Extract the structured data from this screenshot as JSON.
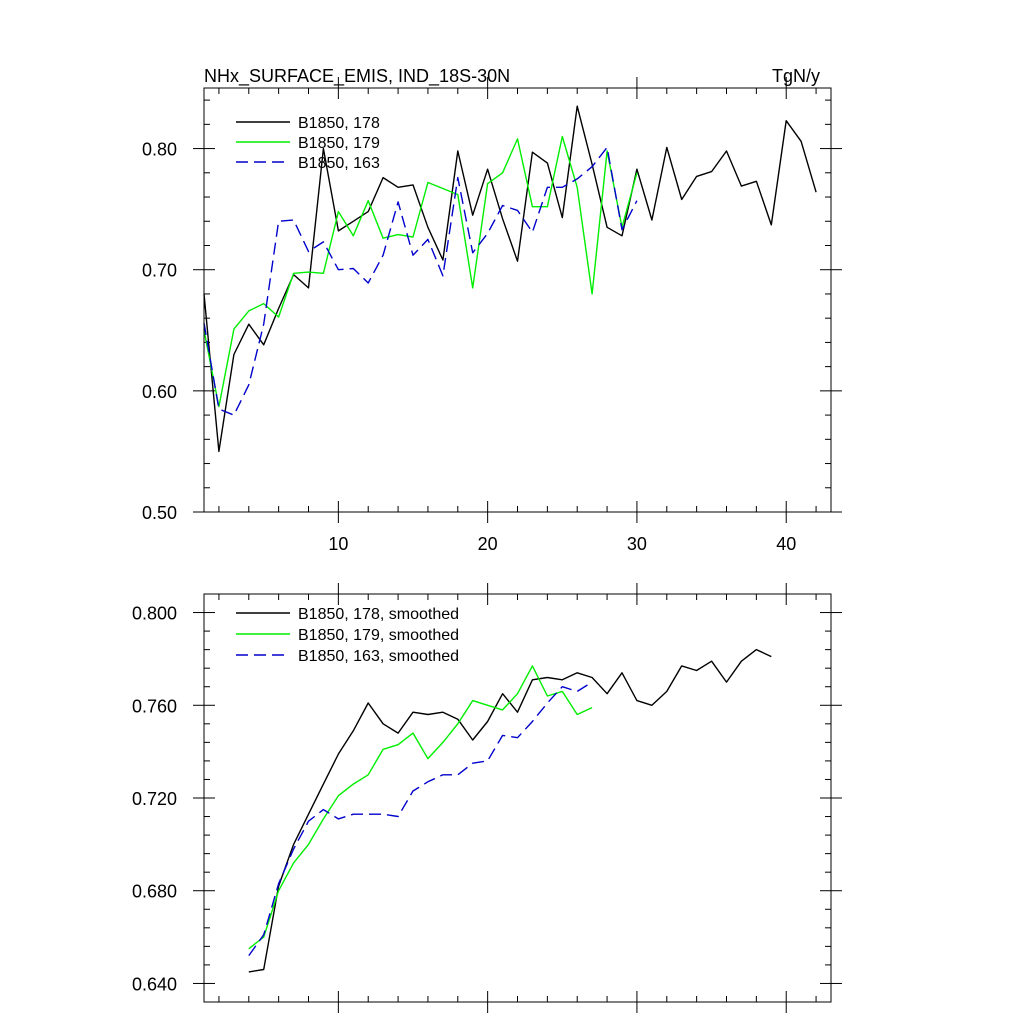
{
  "chart_data": [
    {
      "type": "line",
      "title": "NHx_SURFACE_EMIS, IND_18S-30N",
      "units": "TgN/y",
      "xlim": [
        1,
        43
      ],
      "ylim": [
        0.5,
        0.85
      ],
      "xticks": [
        10,
        20,
        30,
        40
      ],
      "yticks": [
        0.5,
        0.6,
        0.7,
        0.8
      ],
      "ytick_labels": [
        "0.50",
        "0.60",
        "0.70",
        "0.80"
      ],
      "legend_position": "top-left",
      "series": [
        {
          "name": "B1850, 178",
          "color": "#000000",
          "dash": "solid",
          "x": [
            1,
            2,
            3,
            4,
            5,
            6,
            7,
            8,
            9,
            10,
            11,
            12,
            13,
            14,
            15,
            16,
            17,
            18,
            19,
            20,
            21,
            22,
            23,
            24,
            25,
            26,
            27,
            28,
            29,
            30,
            31,
            32,
            33,
            34,
            35,
            36,
            37,
            38,
            39,
            40,
            41,
            42
          ],
          "values": [
            0.68,
            0.55,
            0.63,
            0.655,
            0.638,
            0.668,
            0.696,
            0.685,
            0.8,
            0.732,
            0.74,
            0.748,
            0.776,
            0.768,
            0.77,
            0.735,
            0.708,
            0.798,
            0.745,
            0.783,
            0.742,
            0.707,
            0.797,
            0.788,
            0.743,
            0.835,
            0.787,
            0.735,
            0.728,
            0.783,
            0.741,
            0.801,
            0.758,
            0.777,
            0.781,
            0.798,
            0.769,
            0.773,
            0.737,
            0.823,
            0.806,
            0.764
          ]
        },
        {
          "name": "B1850, 179",
          "color": "#00ee00",
          "dash": "solid",
          "x": [
            1,
            2,
            3,
            4,
            5,
            6,
            7,
            8,
            9,
            10,
            11,
            12,
            13,
            14,
            15,
            16,
            17,
            18,
            19,
            20,
            21,
            22,
            23,
            24,
            25,
            26,
            27,
            28,
            29,
            30
          ],
          "values": [
            0.65,
            0.587,
            0.651,
            0.666,
            0.672,
            0.661,
            0.697,
            0.698,
            0.697,
            0.748,
            0.728,
            0.757,
            0.726,
            0.729,
            0.727,
            0.772,
            0.767,
            0.762,
            0.685,
            0.771,
            0.78,
            0.808,
            0.752,
            0.752,
            0.81,
            0.768,
            0.68,
            0.798,
            0.735,
            0.78
          ]
        },
        {
          "name": "B1850, 163",
          "color": "#0000cc",
          "dash": "dashed",
          "x": [
            1,
            2,
            3,
            4,
            5,
            6,
            7,
            8,
            9,
            10,
            11,
            12,
            13,
            14,
            15,
            16,
            17,
            18,
            19,
            20,
            21,
            22,
            23,
            24,
            25,
            26,
            27,
            28,
            29,
            30
          ],
          "values": [
            0.656,
            0.585,
            0.58,
            0.605,
            0.655,
            0.74,
            0.741,
            0.715,
            0.723,
            0.7,
            0.701,
            0.689,
            0.712,
            0.756,
            0.712,
            0.725,
            0.695,
            0.776,
            0.714,
            0.73,
            0.753,
            0.749,
            0.731,
            0.768,
            0.768,
            0.775,
            0.785,
            0.801,
            0.733,
            0.757
          ]
        }
      ]
    },
    {
      "type": "line",
      "xlim": [
        1,
        43
      ],
      "ylim": [
        0.632,
        0.808
      ],
      "xticks": [
        10,
        20,
        30,
        40
      ],
      "yticks": [
        0.64,
        0.68,
        0.72,
        0.76,
        0.8
      ],
      "ytick_labels": [
        "0.640",
        "0.680",
        "0.720",
        "0.760",
        "0.800"
      ],
      "legend_position": "top-left",
      "series": [
        {
          "name": "B1850, 178, smoothed",
          "color": "#000000",
          "dash": "solid",
          "x": [
            4,
            5,
            6,
            7,
            8,
            9,
            10,
            11,
            12,
            13,
            14,
            15,
            16,
            17,
            18,
            19,
            20,
            21,
            22,
            23,
            24,
            25,
            26,
            27,
            28,
            29,
            30,
            31,
            32,
            33,
            34,
            35,
            36,
            37,
            38,
            39
          ],
          "values": [
            0.645,
            0.646,
            0.682,
            0.7,
            0.713,
            0.726,
            0.739,
            0.749,
            0.761,
            0.752,
            0.748,
            0.757,
            0.756,
            0.757,
            0.754,
            0.745,
            0.753,
            0.765,
            0.757,
            0.771,
            0.772,
            0.771,
            0.774,
            0.772,
            0.765,
            0.774,
            0.762,
            0.76,
            0.766,
            0.777,
            0.775,
            0.779,
            0.77,
            0.779,
            0.784,
            0.781
          ]
        },
        {
          "name": "B1850, 179, smoothed",
          "color": "#00ee00",
          "dash": "solid",
          "x": [
            4,
            5,
            6,
            7,
            8,
            9,
            10,
            11,
            12,
            13,
            14,
            15,
            16,
            17,
            18,
            19,
            20,
            21,
            22,
            23,
            24,
            25,
            26,
            27
          ],
          "values": [
            0.655,
            0.66,
            0.68,
            0.692,
            0.7,
            0.711,
            0.721,
            0.726,
            0.73,
            0.741,
            0.743,
            0.748,
            0.737,
            0.744,
            0.752,
            0.762,
            0.76,
            0.758,
            0.765,
            0.777,
            0.764,
            0.766,
            0.756,
            0.759
          ]
        },
        {
          "name": "B1850, 163, smoothed",
          "color": "#0000cc",
          "dash": "dashed",
          "x": [
            4,
            5,
            6,
            7,
            8,
            9,
            10,
            11,
            12,
            13,
            14,
            15,
            16,
            17,
            18,
            19,
            20,
            21,
            22,
            23,
            24,
            25,
            26,
            27
          ],
          "values": [
            0.652,
            0.661,
            0.683,
            0.698,
            0.71,
            0.715,
            0.711,
            0.713,
            0.713,
            0.713,
            0.712,
            0.723,
            0.727,
            0.73,
            0.73,
            0.735,
            0.736,
            0.747,
            0.746,
            0.753,
            0.761,
            0.768,
            0.766,
            0.77
          ]
        }
      ]
    }
  ]
}
